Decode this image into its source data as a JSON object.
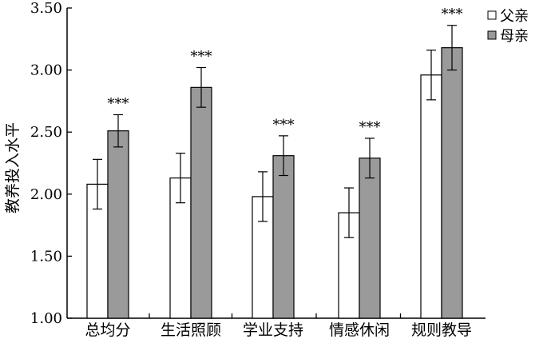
{
  "chart_data": {
    "type": "bar",
    "ylabel": "教养投入水平",
    "ylim": [
      1.0,
      3.5
    ],
    "yticks": [
      "1.00",
      "1.50",
      "2.00",
      "2.50",
      "3.00",
      "3.50"
    ],
    "grid": false,
    "legend_position": "top-right",
    "categories": [
      "总均分",
      "生活照顾",
      "学业支持",
      "情感休闲",
      "规则教导"
    ],
    "series": [
      {
        "name": "父亲",
        "color": "#ffffff",
        "values": [
          2.08,
          2.13,
          1.98,
          1.85,
          2.96
        ],
        "errors": [
          0.2,
          0.2,
          0.2,
          0.2,
          0.2
        ]
      },
      {
        "name": "母亲",
        "color": "#9a9a9a",
        "values": [
          2.51,
          2.86,
          2.31,
          2.29,
          3.18
        ],
        "errors": [
          0.13,
          0.16,
          0.16,
          0.16,
          0.18
        ]
      }
    ],
    "annotations": [
      "***",
      "***",
      "***",
      "***",
      "***"
    ]
  }
}
